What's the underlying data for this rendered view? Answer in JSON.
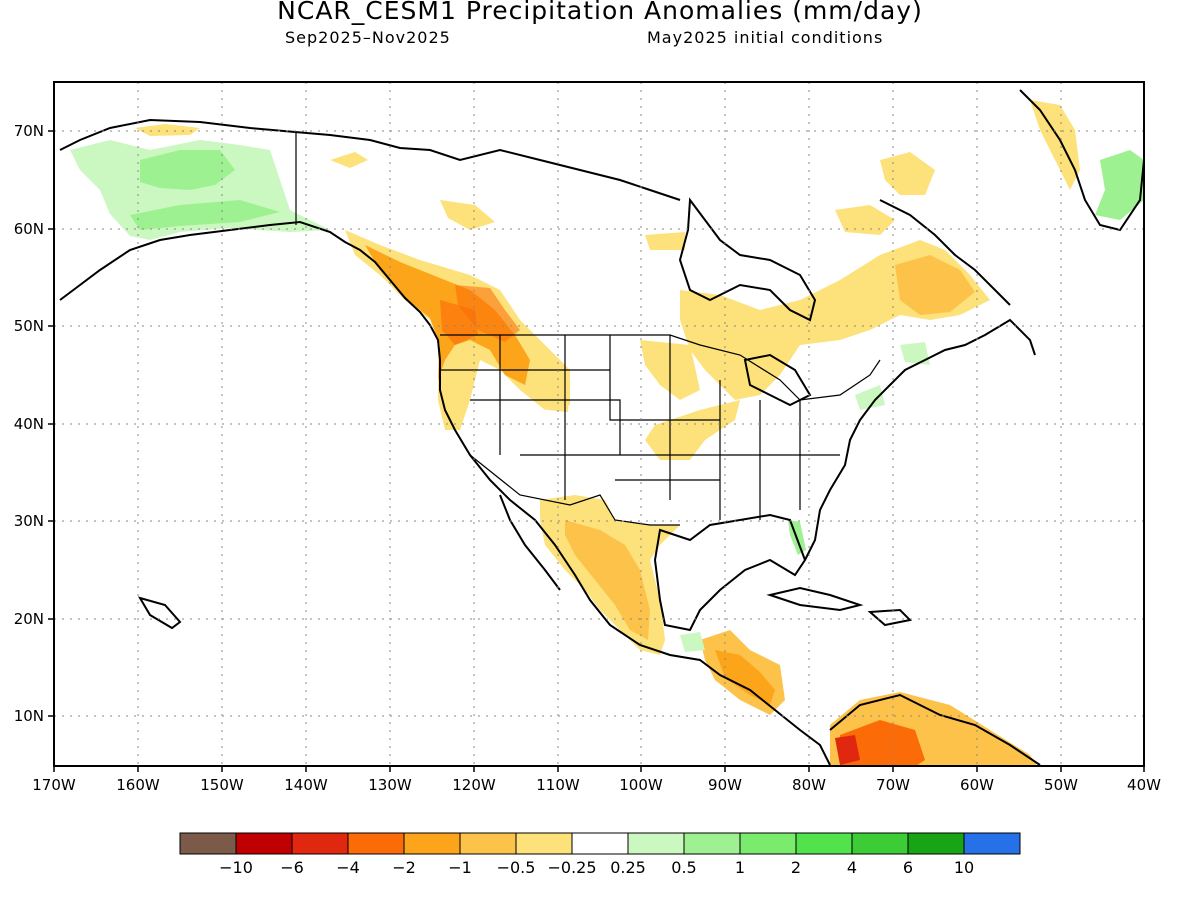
{
  "title": "NCAR_CESM1 Precipitation Anomalies (mm/day)",
  "subtitle_period": "Sep2025–Nov2025",
  "subtitle_init": "May2025 initial conditions",
  "lat_labels": [
    "70N",
    "60N",
    "50N",
    "40N",
    "30N",
    "20N",
    "10N"
  ],
  "lon_labels": [
    "170W",
    "160W",
    "150W",
    "140W",
    "130W",
    "120W",
    "110W",
    "100W",
    "90W",
    "80W",
    "70W",
    "60W",
    "50W",
    "40W"
  ],
  "colorbar": {
    "colors": [
      "#7b5a4a",
      "#c00000",
      "#e02810",
      "#fb6b08",
      "#fca41a",
      "#fcc24a",
      "#fde17a",
      "#ffffff",
      "#cbf7c0",
      "#9ef190",
      "#7beb6e",
      "#52e24c",
      "#3ccc36",
      "#18a414",
      "#2671e8"
    ],
    "labels": [
      "−10",
      "−6",
      "−4",
      "−2",
      "−1",
      "−0.5",
      "−0.25",
      "0.25",
      "0.5",
      "1",
      "2",
      "4",
      "6",
      "10"
    ]
  },
  "legend_semantics": {
    "dry": "brown-red-orange-yellow",
    "wet": "green-blue"
  }
}
